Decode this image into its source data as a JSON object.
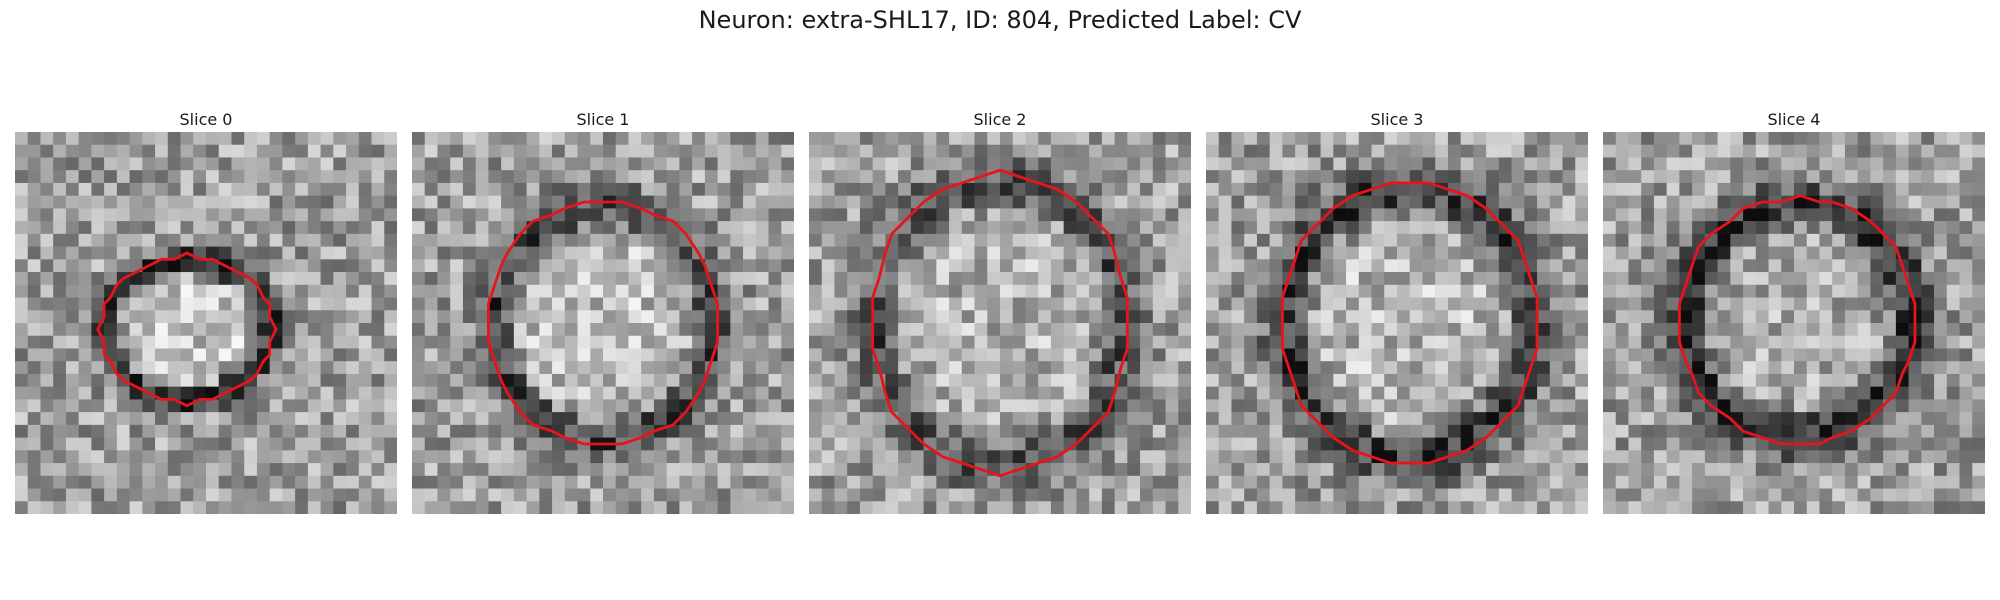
{
  "figure": {
    "title": "Neuron: extra-SHL17, ID: 804, Predicted Label: CV",
    "contour_color": "#e8141b"
  },
  "panels": [
    {
      "title": "Slice 0"
    },
    {
      "title": "Slice 1"
    },
    {
      "title": "Slice 2"
    },
    {
      "title": "Slice 3"
    },
    {
      "title": "Slice 4"
    }
  ]
}
